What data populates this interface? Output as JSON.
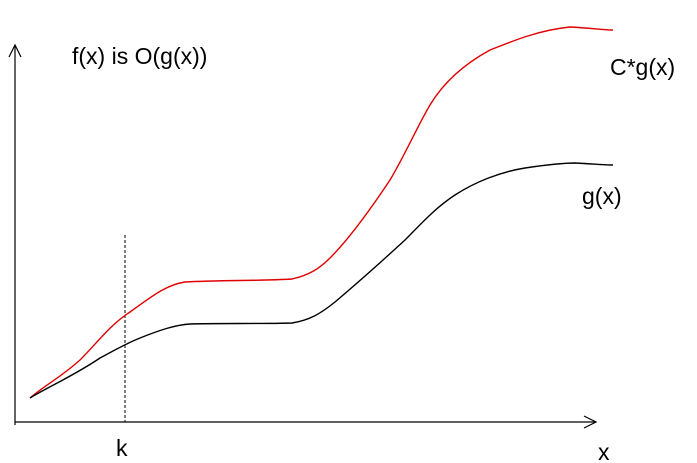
{
  "title": "f(x) is O(g(x))",
  "labels": {
    "upper_curve": "C*g(x)",
    "lower_curve": "g(x)",
    "threshold": "k",
    "x_axis": "x"
  },
  "colors": {
    "upper_curve": "#e00000",
    "lower_curve": "#000000",
    "axes": "#000000"
  }
}
